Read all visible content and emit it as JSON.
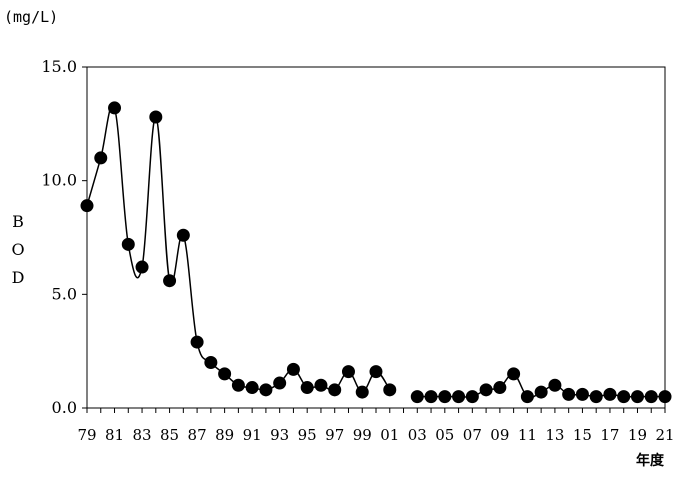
{
  "chart_data": {
    "type": "line",
    "unit_label": "(mg/L)",
    "ylabel": "BOD",
    "xlabel": "年度",
    "ylim": [
      0,
      15
    ],
    "y_ticks": [
      "0.0",
      "5.0",
      "10.0",
      "15.0"
    ],
    "y_tick_values": [
      0,
      5,
      10,
      15
    ],
    "x_tick_labels": [
      "79",
      "81",
      "83",
      "85",
      "87",
      "89",
      "91",
      "93",
      "95",
      "97",
      "99",
      "01",
      "03",
      "05",
      "07",
      "09",
      "11",
      "13",
      "15",
      "17",
      "19",
      "21"
    ],
    "grid": false,
    "legend": "none",
    "marker_color": "#000000",
    "series": [
      {
        "segments": [
          {
            "x": [
              1979,
              1980,
              1981,
              1982,
              1983,
              1984,
              1985,
              1986,
              1987,
              1988,
              1989,
              1990,
              1991,
              1992,
              1993,
              1994,
              1995,
              1996,
              1997,
              1998,
              1999,
              2000,
              2001
            ],
            "y": [
              8.9,
              11.0,
              13.2,
              7.2,
              6.2,
              12.8,
              5.6,
              7.6,
              2.9,
              2.0,
              1.5,
              1.0,
              0.9,
              0.8,
              1.1,
              1.7,
              0.9,
              1.0,
              0.8,
              1.6,
              0.7,
              1.6,
              0.8
            ]
          },
          {
            "x": [
              2003,
              2004,
              2005,
              2006,
              2007,
              2008,
              2009,
              2010,
              2011,
              2012,
              2013,
              2014,
              2015,
              2016,
              2017,
              2018,
              2019,
              2020,
              2021
            ],
            "y": [
              0.5,
              0.5,
              0.5,
              0.5,
              0.5,
              0.8,
              0.9,
              1.5,
              0.5,
              0.7,
              1.0,
              0.6,
              0.6,
              0.5,
              0.6,
              0.5,
              0.5,
              0.5,
              0.5
            ]
          }
        ]
      }
    ]
  }
}
